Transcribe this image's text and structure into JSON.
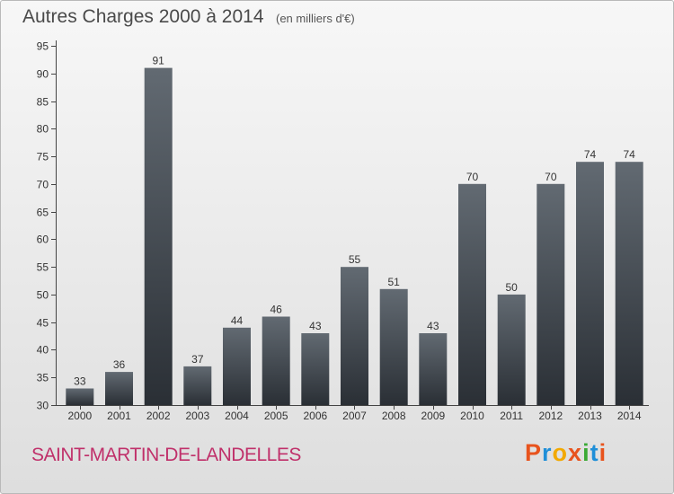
{
  "header": {
    "title": "Autres Charges 2000 à 2014",
    "unit": "(en milliers d'€)"
  },
  "footer": {
    "commune": "SAINT-MARTIN-DE-LANDELLES",
    "brand": "Proxiti",
    "brand_colors": [
      "#e8531d",
      "#1f8fd8",
      "#f2a900",
      "#e8531d",
      "#3aa935",
      "#1f8fd8",
      "#e8531d"
    ]
  },
  "colors": {
    "bar_top": "#626a72",
    "bar_bottom": "#2a2f35",
    "commune_text": "#c0306a"
  },
  "chart_data": {
    "type": "bar",
    "categories": [
      "2000",
      "2001",
      "2002",
      "2003",
      "2004",
      "2005",
      "2006",
      "2007",
      "2008",
      "2009",
      "2010",
      "2011",
      "2012",
      "2013",
      "2014"
    ],
    "values": [
      33,
      36,
      91,
      37,
      44,
      46,
      43,
      55,
      51,
      43,
      70,
      50,
      70,
      74,
      74
    ],
    "title": "Autres Charges 2000 à 2014",
    "xlabel": "",
    "ylabel": "",
    "ylim": [
      30,
      95
    ],
    "yticks": [
      30,
      35,
      40,
      45,
      50,
      55,
      60,
      65,
      70,
      75,
      80,
      85,
      90,
      95
    ],
    "grid": false,
    "data_labels": true
  }
}
